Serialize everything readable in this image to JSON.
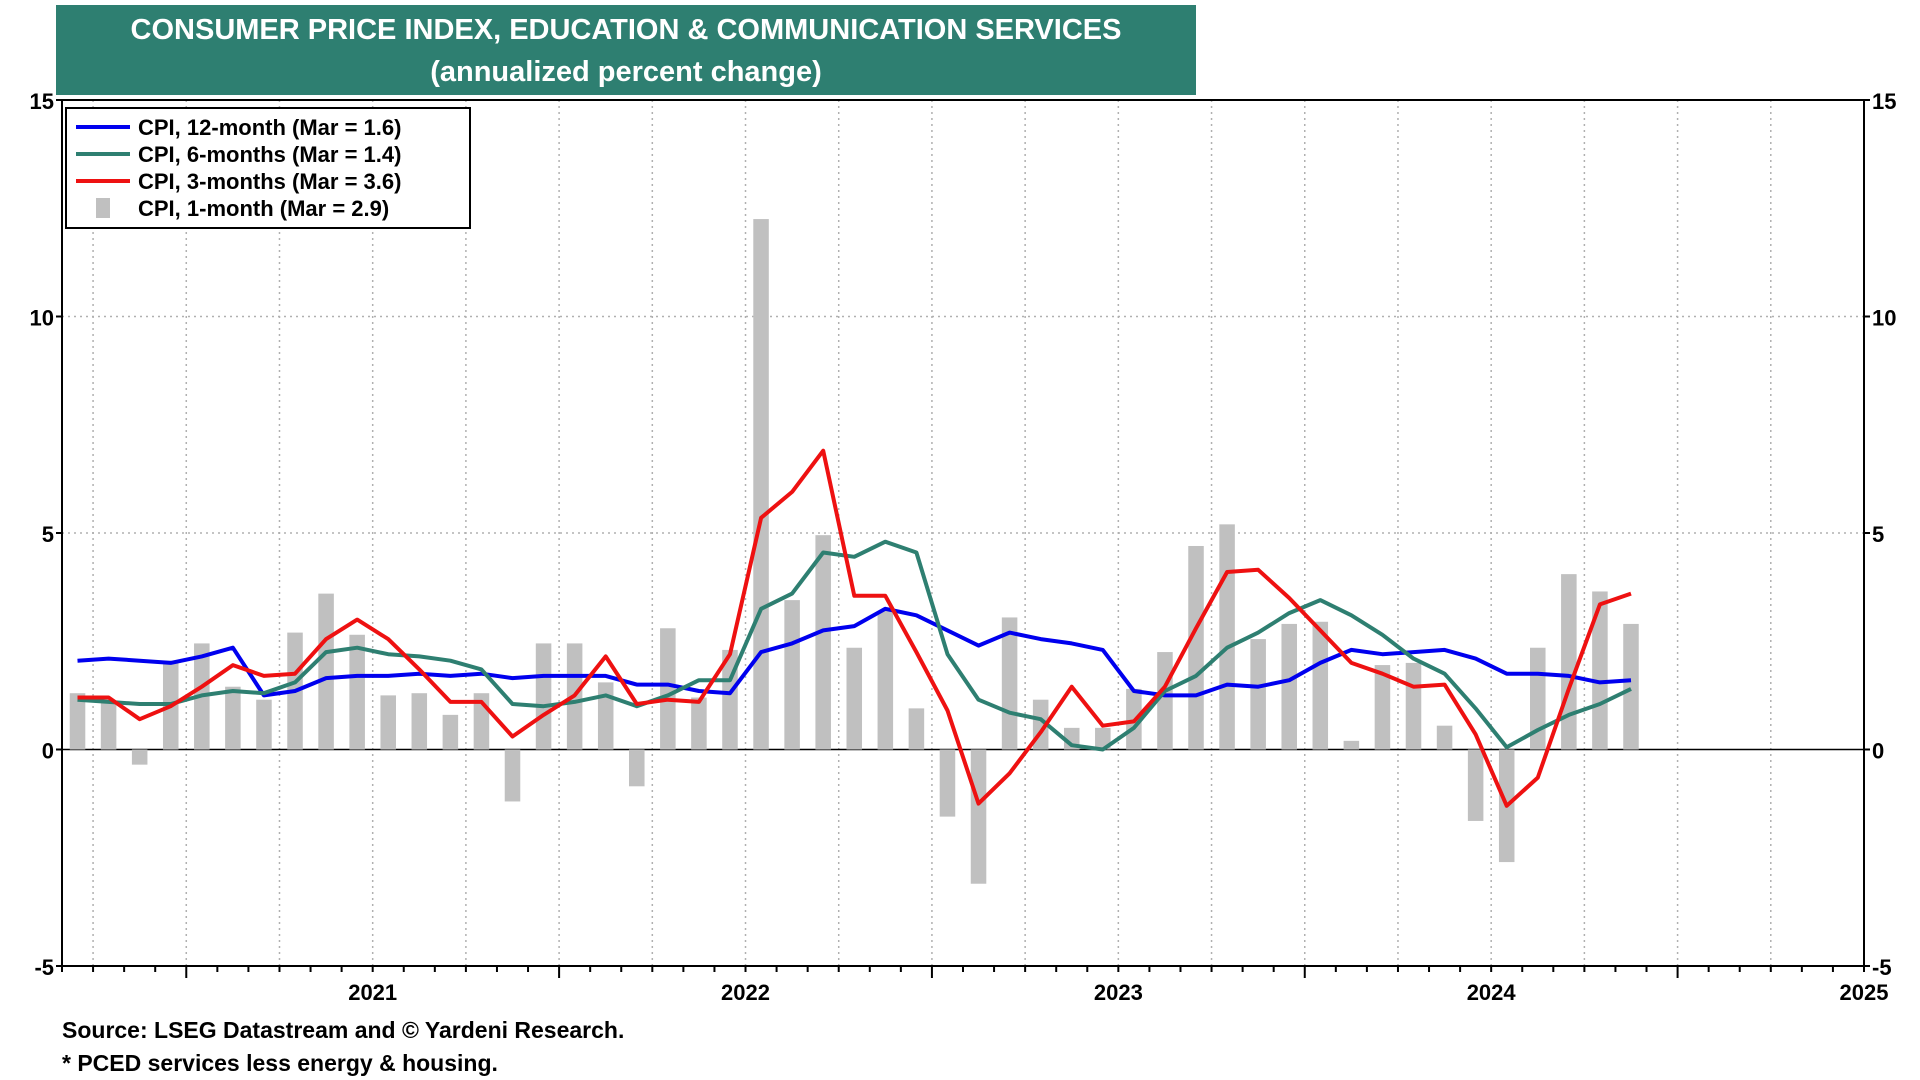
{
  "title_line1": "CONSUMER PRICE INDEX, EDUCATION & COMMUNICATION SERVICES",
  "title_line2": "(annualized percent change)",
  "source": "Source: LSEG Datastream and © Yardeni Research.",
  "footnote": "* PCED services less energy & housing.",
  "colors": {
    "title_bg": "#2e7f71",
    "s12": "#0000ee",
    "s6": "#2e7f71",
    "s3": "#ee1111",
    "s1": "#c0c0c0"
  },
  "chart_data": {
    "type": "line",
    "title": "CONSUMER PRICE INDEX, EDUCATION & COMMUNICATION SERVICES",
    "subtitle": "(annualized percent change)",
    "x_start": "2020-09",
    "x_end": "2025-03",
    "x_axis_range": [
      "2020-09",
      "2025-07"
    ],
    "ylim": [
      -5,
      15
    ],
    "yticks": [
      "15",
      "10",
      "5",
      "0",
      "-5"
    ],
    "year_labels": [
      "2021",
      "2022",
      "2023",
      "2024",
      "2025"
    ],
    "grid": true,
    "legend_position": "top-left",
    "series": [
      {
        "name": "CPI, 12-month (Mar = 1.6)",
        "type": "line",
        "color_key": "s12",
        "values": [
          2.05,
          2.1,
          2.05,
          2.0,
          2.15,
          2.35,
          1.25,
          1.35,
          1.65,
          1.7,
          1.7,
          1.75,
          1.7,
          1.75,
          1.65,
          1.7,
          1.7,
          1.7,
          1.5,
          1.5,
          1.35,
          1.3,
          2.25,
          2.45,
          2.75,
          2.85,
          3.25,
          3.1,
          2.75,
          2.4,
          2.7,
          2.55,
          2.45,
          2.3,
          1.35,
          1.25,
          1.25,
          1.5,
          1.45,
          1.6,
          2.0,
          2.3,
          2.2,
          2.25,
          2.3,
          2.1,
          1.75,
          1.75,
          1.7,
          1.55,
          1.6
        ]
      },
      {
        "name": "CPI, 6-months (Mar = 1.4)",
        "type": "line",
        "color_key": "s6",
        "values": [
          1.15,
          1.1,
          1.05,
          1.05,
          1.25,
          1.35,
          1.3,
          1.55,
          2.25,
          2.35,
          2.2,
          2.15,
          2.05,
          1.85,
          1.05,
          1.0,
          1.1,
          1.25,
          1.0,
          1.25,
          1.6,
          1.6,
          3.25,
          3.6,
          4.55,
          4.45,
          4.8,
          4.55,
          2.2,
          1.15,
          0.85,
          0.7,
          0.1,
          0.0,
          0.5,
          1.35,
          1.7,
          2.35,
          2.7,
          3.15,
          3.45,
          3.1,
          2.65,
          2.1,
          1.75,
          0.95,
          0.05,
          0.45,
          0.8,
          1.05,
          1.4
        ]
      },
      {
        "name": "CPI, 3-months (Mar = 3.6)",
        "type": "line",
        "color_key": "s3",
        "values": [
          1.2,
          1.2,
          0.7,
          1.0,
          1.45,
          1.95,
          1.7,
          1.75,
          2.55,
          3.0,
          2.55,
          1.85,
          1.1,
          1.1,
          0.3,
          0.8,
          1.25,
          2.15,
          1.05,
          1.15,
          1.1,
          2.2,
          5.35,
          5.95,
          6.9,
          3.55,
          3.55,
          2.25,
          0.9,
          -1.25,
          -0.55,
          0.4,
          1.45,
          0.55,
          0.65,
          1.45,
          2.8,
          4.1,
          4.15,
          3.5,
          2.75,
          2.0,
          1.75,
          1.45,
          1.5,
          0.35,
          -1.3,
          -0.65,
          1.4,
          3.35,
          3.6
        ]
      },
      {
        "name": "CPI, 1-month (Mar = 2.9)",
        "type": "bar",
        "color_key": "s1",
        "values": [
          1.3,
          1.1,
          -0.35,
          2.05,
          2.45,
          1.45,
          1.15,
          2.7,
          3.6,
          2.65,
          1.25,
          1.3,
          0.8,
          1.3,
          -1.2,
          2.45,
          2.45,
          1.55,
          -0.85,
          2.8,
          1.2,
          2.3,
          12.25,
          3.45,
          4.95,
          2.35,
          3.2,
          0.95,
          -1.55,
          -3.1,
          3.05,
          1.15,
          0.5,
          0.5,
          1.4,
          2.25,
          4.7,
          5.2,
          2.55,
          2.9,
          2.95,
          0.2,
          1.95,
          2.0,
          0.55,
          -1.65,
          -2.6,
          2.35,
          4.05,
          3.65,
          2.9
        ]
      }
    ]
  }
}
